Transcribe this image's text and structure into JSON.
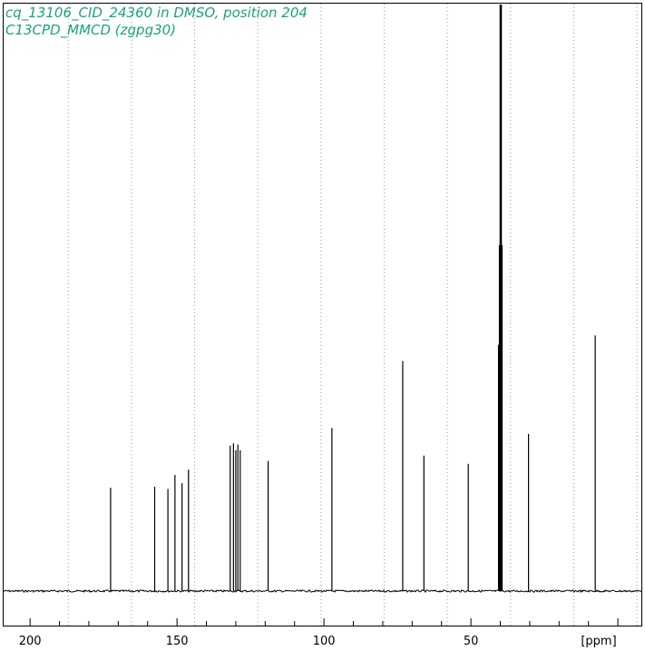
{
  "chart_data": {
    "type": "line",
    "title": "cq_13106_CID_24360 in DMSO, position 204",
    "subtitle": "C13CPD_MMCD (zgpg30)",
    "xlabel": "[ppm]",
    "xlim": [
      209,
      -8
    ],
    "ylim": [
      0,
      1.0
    ],
    "x_ticks": [
      200,
      150,
      100,
      50
    ],
    "grid": "vertical dotted",
    "colors": {
      "title": "#1aa37a",
      "trace": "#000000",
      "grid": "#9a9a9a"
    },
    "peaks": [
      {
        "ppm": 172.6,
        "height": 0.176
      },
      {
        "ppm": 157.6,
        "height": 0.178
      },
      {
        "ppm": 153.1,
        "height": 0.174
      },
      {
        "ppm": 150.7,
        "height": 0.198
      },
      {
        "ppm": 148.3,
        "height": 0.184
      },
      {
        "ppm": 146.1,
        "height": 0.207
      },
      {
        "ppm": 131.9,
        "height": 0.248
      },
      {
        "ppm": 130.8,
        "height": 0.252
      },
      {
        "ppm": 130.0,
        "height": 0.24
      },
      {
        "ppm": 129.3,
        "height": 0.25
      },
      {
        "ppm": 128.5,
        "height": 0.24
      },
      {
        "ppm": 119.0,
        "height": 0.222
      },
      {
        "ppm": 97.3,
        "height": 0.278
      },
      {
        "ppm": 73.2,
        "height": 0.392
      },
      {
        "ppm": 66.0,
        "height": 0.231
      },
      {
        "ppm": 50.9,
        "height": 0.217
      },
      {
        "ppm": 40.6,
        "height": 0.42
      },
      {
        "ppm": 40.3,
        "height": 0.59
      },
      {
        "ppm": 40.0,
        "height": 1.0
      },
      {
        "ppm": 39.7,
        "height": 1.0
      },
      {
        "ppm": 39.4,
        "height": 0.59
      },
      {
        "ppm": 30.4,
        "height": 0.268
      },
      {
        "ppm": 7.7,
        "height": 0.436
      }
    ]
  }
}
